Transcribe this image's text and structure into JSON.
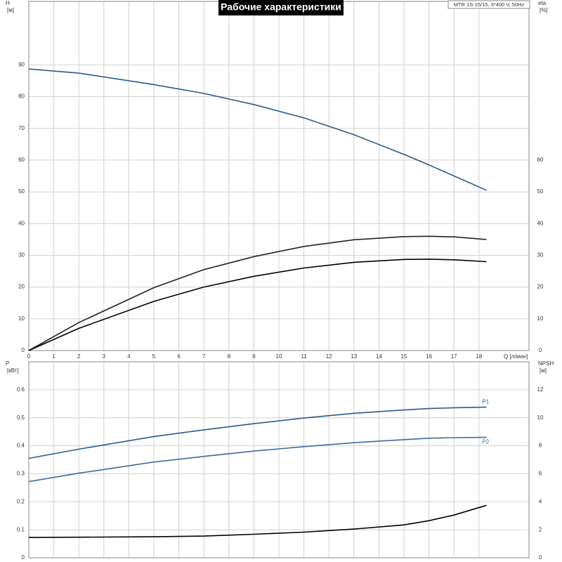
{
  "title": "Рабочие характеристики",
  "subtitle": "MTR 1S-15/15, 3*400 V, 50Hz",
  "chart_data": [
    {
      "type": "line",
      "ylabel": "H",
      "yunit": "[м]",
      "y2label": "eta",
      "y2unit": "[%]",
      "xlabel": "Q [л/мин]",
      "x": [
        0,
        2,
        5,
        7,
        9,
        11,
        13,
        15,
        16,
        17,
        18.3
      ],
      "xlim": [
        0,
        20
      ],
      "xticks": [
        0,
        1,
        2,
        3,
        4,
        5,
        6,
        7,
        8,
        9,
        10,
        11,
        12,
        13,
        14,
        15,
        16,
        17,
        18
      ],
      "ylim": [
        0,
        110
      ],
      "yticks": [
        0,
        10,
        20,
        30,
        40,
        50,
        60,
        70,
        80,
        90
      ],
      "y2lim": [
        0,
        110
      ],
      "y2ticks": [
        0,
        10,
        20,
        30,
        40,
        50,
        60
      ],
      "grid": true,
      "series": [
        {
          "color": "#2a5b8c",
          "values": [
            88.7,
            87.4,
            83.8,
            81,
            77.5,
            73.3,
            68,
            61.8,
            58.5,
            55,
            50.5
          ]
        },
        {
          "color": "#222222",
          "axis": "y2",
          "values": [
            0,
            8.8,
            19.8,
            25.5,
            29.6,
            32.8,
            34.9,
            35.9,
            36,
            35.8,
            35
          ]
        },
        {
          "color": "#000000",
          "axis": "y2",
          "values": [
            0,
            7,
            15.5,
            20,
            23.4,
            26,
            27.8,
            28.7,
            28.8,
            28.6,
            28
          ]
        }
      ]
    },
    {
      "type": "line",
      "ylabel": "P",
      "yunit": "[кВт]",
      "y2label": "NPSH",
      "y2unit": "[м]",
      "x": [
        0,
        2,
        5,
        7,
        9,
        11,
        13,
        15,
        16,
        17,
        18.3
      ],
      "xlim": [
        0,
        20
      ],
      "ylim": [
        0,
        0.7
      ],
      "yticks": [
        0,
        0.1,
        0.2,
        0.3,
        0.4,
        0.5,
        0.6
      ],
      "y2lim": [
        0,
        14
      ],
      "y2ticks": [
        0,
        2,
        4,
        6,
        8,
        10,
        12
      ],
      "grid": true,
      "series": [
        {
          "name": "P1",
          "color": "#2a5b8c",
          "values": [
            0.355,
            0.388,
            0.433,
            0.457,
            0.479,
            0.499,
            0.516,
            0.528,
            0.533,
            0.536,
            0.538
          ]
        },
        {
          "name": "P2",
          "color": "#3a6b9c",
          "values": [
            0.272,
            0.302,
            0.342,
            0.362,
            0.381,
            0.397,
            0.411,
            0.422,
            0.427,
            0.429,
            0.43
          ]
        },
        {
          "color": "#000000",
          "axis": "y2",
          "values": [
            1.45,
            1.47,
            1.5,
            1.55,
            1.68,
            1.83,
            2.05,
            2.35,
            2.65,
            3.05,
            3.75
          ]
        }
      ]
    }
  ]
}
